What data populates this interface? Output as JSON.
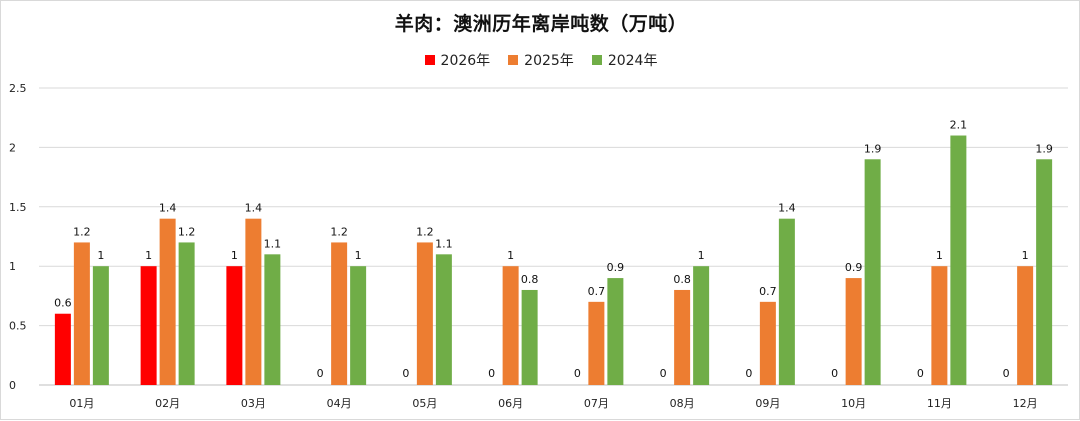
{
  "chart_data": {
    "type": "bar",
    "title": "羊肉：澳洲历年离岸吨数（万吨）",
    "categories": [
      "01月",
      "02月",
      "03月",
      "04月",
      "05月",
      "06月",
      "07月",
      "08月",
      "09月",
      "10月",
      "11月",
      "12月"
    ],
    "series": [
      {
        "name": "2026年",
        "color": "#ff0000",
        "values": [
          0.6,
          1,
          1,
          0,
          0,
          0,
          0,
          0,
          0,
          0,
          0,
          0
        ],
        "labels": [
          "0.6",
          "1",
          "1",
          "0",
          "0",
          "0",
          "0",
          "0",
          "0",
          "0",
          "0",
          "0"
        ]
      },
      {
        "name": "2025年",
        "color": "#ed7d31",
        "values": [
          1.2,
          1.4,
          1.4,
          1.2,
          1.2,
          1,
          0.7,
          0.8,
          0.7,
          0.9,
          1,
          1
        ],
        "labels": [
          "1.2",
          "1.4",
          "1.4",
          "1.2",
          "1.2",
          "1",
          "0.7",
          "0.8",
          "0.7",
          "0.9",
          "1",
          "1"
        ]
      },
      {
        "name": "2024年",
        "color": "#70ad47",
        "values": [
          1,
          1.2,
          1.1,
          1,
          1.1,
          0.8,
          0.9,
          1,
          1.4,
          1.9,
          2.1,
          1.9
        ],
        "labels": [
          "1",
          "1.2",
          "1.1",
          "1",
          "1.1",
          "0.8",
          "0.9",
          "1",
          "1.4",
          "1.9",
          "2.1",
          "1.9"
        ]
      }
    ],
    "ylim": [
      0,
      2.5
    ],
    "yticks": [
      "0",
      "0.5",
      "1",
      "1.5",
      "2",
      "2.5"
    ],
    "ytick_values": [
      0,
      0.5,
      1,
      1.5,
      2,
      2.5
    ],
    "grid": true,
    "legend_position": "top-center",
    "gridline_color": "#d9d9d9",
    "axis_color": "#bfbfbf"
  }
}
